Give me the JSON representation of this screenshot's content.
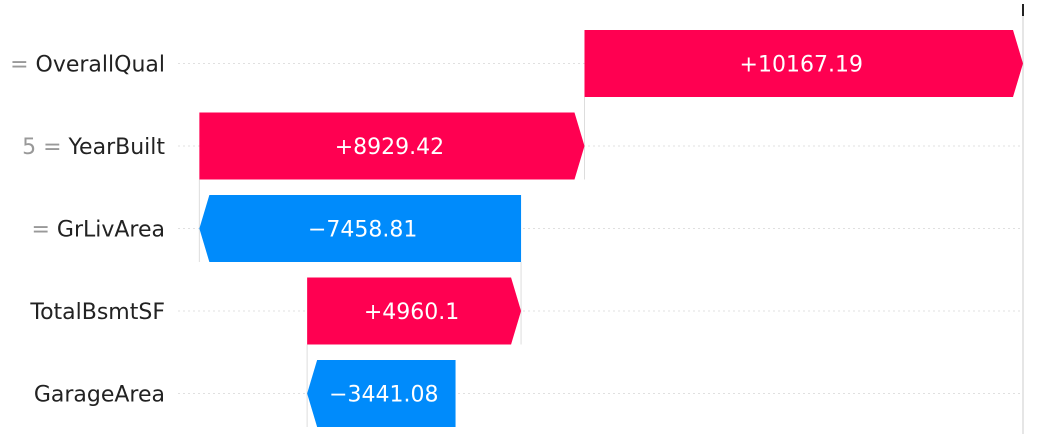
{
  "chart_data": {
    "type": "waterfall",
    "features": [
      {
        "label_prefix": "=",
        "feature": "OverallQual",
        "contribution": 10167.19,
        "display": "+10167.19"
      },
      {
        "label_prefix": "5 =",
        "feature": "YearBuilt",
        "contribution": 8929.42,
        "display": "+8929.42"
      },
      {
        "label_prefix": "=",
        "feature": "GrLivArea",
        "contribution": -7458.81,
        "display": "−7458.81"
      },
      {
        "label_prefix": "",
        "feature": "TotalBsmtSF",
        "contribution": 4960.1,
        "display": "+4960.1"
      },
      {
        "label_prefix": "",
        "feature": "GarageArea",
        "contribution": -3441.08,
        "display": "−3441.08"
      }
    ],
    "colors": {
      "positive": "#ff0051",
      "negative": "#008bfb",
      "prefix_text": "#999999",
      "feature_text": "#222222",
      "value_text": "#ffffff",
      "gridline": "#e0e0e0"
    }
  }
}
